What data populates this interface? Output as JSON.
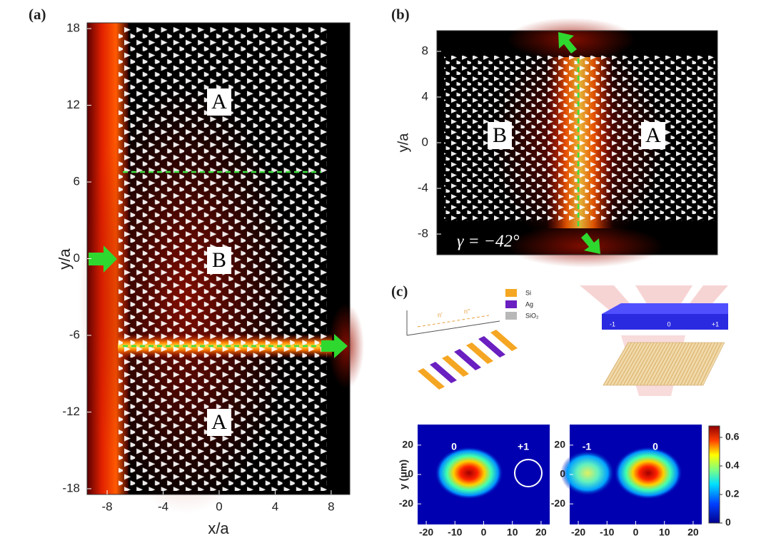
{
  "a": {
    "label": "(a)",
    "xlabel": "x/a",
    "ylabel": "y/a",
    "xlim": [
      -9.43,
      9.33
    ],
    "ylim": [
      -18.45,
      18.45
    ],
    "xticks": [
      -8,
      -4,
      0,
      4,
      8
    ],
    "yticks": [
      18,
      12,
      6,
      0,
      -6,
      -12,
      -18
    ],
    "regions": [
      "A",
      "B",
      "A"
    ]
  },
  "b": {
    "label": "(b)",
    "ylabel": "y/a",
    "ylim": [
      -9.81,
      9.81
    ],
    "yticks": [
      8,
      4,
      0,
      -4,
      -8
    ],
    "regions": [
      "B",
      "A"
    ],
    "annotation": "γ = −42°"
  },
  "c": {
    "label": "(c)",
    "materials": [
      {
        "name": "Si",
        "color": "#f5a623"
      },
      {
        "name": "Ag",
        "color": "#6a1fc0"
      },
      {
        "name": "SiO₂",
        "color": "#b8b8b8"
      }
    ],
    "index_labels": [
      "n'",
      "n''"
    ],
    "orders": [
      "-1",
      "0",
      "+1"
    ],
    "maps": [
      {
        "orders": [
          "0",
          "+1"
        ]
      },
      {
        "orders": [
          "-1",
          "0"
        ]
      }
    ],
    "ylabel": "y (μm)",
    "xlim": [
      -23,
      23
    ],
    "ylim": [
      -34,
      34
    ],
    "xticks": [
      -20,
      -10,
      0,
      10,
      20
    ],
    "yticks": [
      20,
      0,
      -20
    ],
    "colorbar": {
      "lim": [
        0,
        0.68
      ],
      "ticks": [
        0.6,
        0.4,
        0.2,
        0
      ]
    }
  }
}
